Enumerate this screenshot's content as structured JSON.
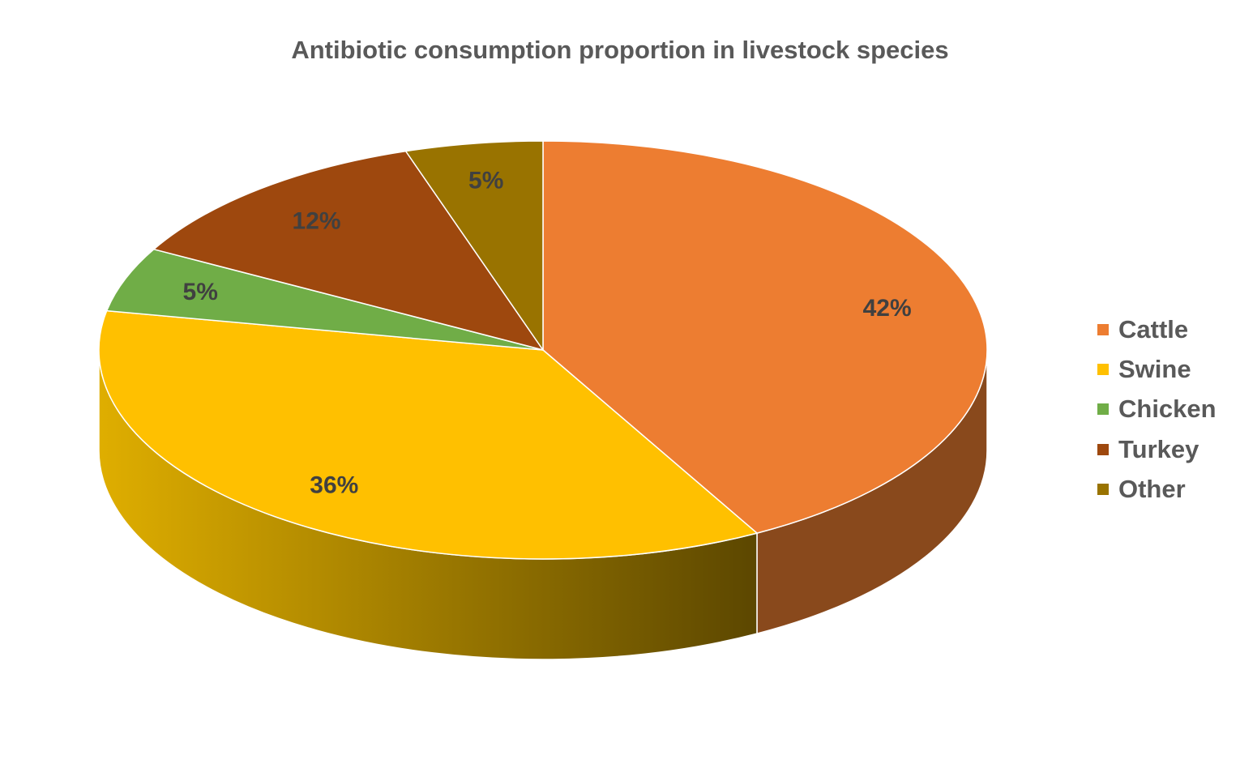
{
  "chart_data": {
    "type": "pie",
    "title": "Antibiotic consumption proportion in livestock species",
    "categories": [
      "Cattle",
      "Swine",
      "Chicken",
      "Turkey",
      "Other"
    ],
    "values": [
      42,
      36,
      5,
      12,
      5
    ],
    "data_labels": [
      "42%",
      "36%",
      "5%",
      "12%",
      "5%"
    ],
    "colors": [
      "#ED7D31",
      "#FFC000",
      "#70AD47",
      "#9E480E",
      "#997300"
    ],
    "style": "3d",
    "legend_position": "right"
  }
}
